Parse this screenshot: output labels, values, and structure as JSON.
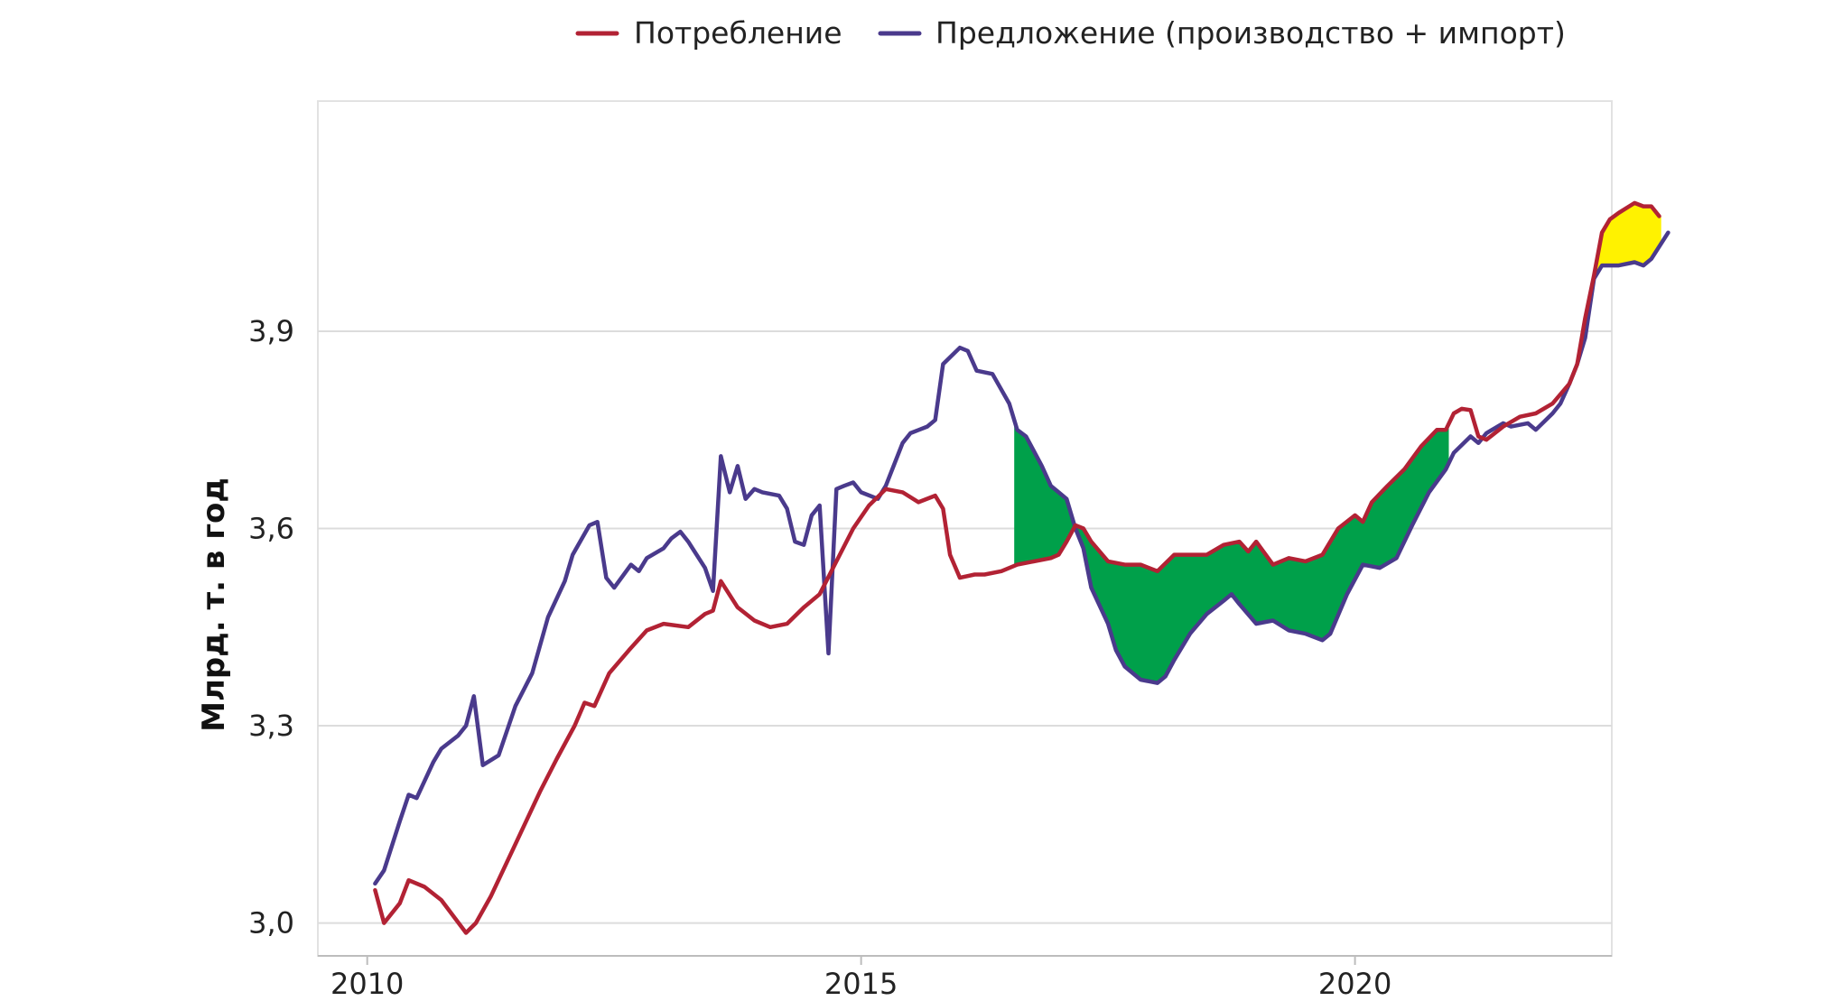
{
  "chart_data": {
    "type": "line",
    "title": "",
    "xlabel": "",
    "ylabel": "Млрд. т. в год",
    "xlim": [
      2009.5,
      2022.6
    ],
    "ylim": [
      2.95,
      4.25
    ],
    "x_ticks": [
      2010,
      2015,
      2020
    ],
    "x_tick_labels": [
      "2010",
      "2015",
      "2020"
    ],
    "y_ticks": [
      3.0,
      3.3,
      3.6,
      3.9
    ],
    "y_tick_labels": [
      "3,0",
      "3,3",
      "3,6",
      "3,9"
    ],
    "grid": "horizontal",
    "legend_position": "top",
    "series": [
      {
        "name": "Потребление",
        "color": "#b22234",
        "points": [
          [
            2010.08,
            3.05
          ],
          [
            2010.17,
            3.0
          ],
          [
            2010.33,
            3.03
          ],
          [
            2010.42,
            3.065
          ],
          [
            2010.58,
            3.055
          ],
          [
            2010.75,
            3.035
          ],
          [
            2010.9,
            3.005
          ],
          [
            2011.0,
            2.985
          ],
          [
            2011.1,
            3.0
          ],
          [
            2011.25,
            3.04
          ],
          [
            2011.5,
            3.12
          ],
          [
            2011.75,
            3.2
          ],
          [
            2011.92,
            3.25
          ],
          [
            2012.1,
            3.3
          ],
          [
            2012.2,
            3.335
          ],
          [
            2012.3,
            3.33
          ],
          [
            2012.45,
            3.38
          ],
          [
            2012.65,
            3.415
          ],
          [
            2012.83,
            3.445
          ],
          [
            2013.0,
            3.455
          ],
          [
            2013.25,
            3.45
          ],
          [
            2013.42,
            3.47
          ],
          [
            2013.5,
            3.475
          ],
          [
            2013.58,
            3.52
          ],
          [
            2013.75,
            3.48
          ],
          [
            2013.92,
            3.46
          ],
          [
            2014.08,
            3.45
          ],
          [
            2014.25,
            3.455
          ],
          [
            2014.42,
            3.48
          ],
          [
            2014.58,
            3.5
          ],
          [
            2014.75,
            3.55
          ],
          [
            2014.92,
            3.6
          ],
          [
            2015.08,
            3.635
          ],
          [
            2015.25,
            3.66
          ],
          [
            2015.42,
            3.655
          ],
          [
            2015.58,
            3.64
          ],
          [
            2015.75,
            3.65
          ],
          [
            2015.83,
            3.63
          ],
          [
            2015.9,
            3.56
          ],
          [
            2016.0,
            3.525
          ],
          [
            2016.15,
            3.53
          ],
          [
            2016.25,
            3.53
          ],
          [
            2016.42,
            3.535
          ],
          [
            2016.58,
            3.545
          ],
          [
            2016.75,
            3.55
          ],
          [
            2016.92,
            3.555
          ],
          [
            2017.0,
            3.56
          ],
          [
            2017.08,
            3.58
          ],
          [
            2017.17,
            3.605
          ],
          [
            2017.25,
            3.6
          ],
          [
            2017.33,
            3.58
          ],
          [
            2017.5,
            3.55
          ],
          [
            2017.67,
            3.545
          ],
          [
            2017.83,
            3.545
          ],
          [
            2018.0,
            3.535
          ],
          [
            2018.17,
            3.56
          ],
          [
            2018.33,
            3.56
          ],
          [
            2018.5,
            3.56
          ],
          [
            2018.67,
            3.575
          ],
          [
            2018.83,
            3.58
          ],
          [
            2018.92,
            3.565
          ],
          [
            2019.0,
            3.58
          ],
          [
            2019.17,
            3.545
          ],
          [
            2019.33,
            3.555
          ],
          [
            2019.5,
            3.55
          ],
          [
            2019.67,
            3.56
          ],
          [
            2019.83,
            3.6
          ],
          [
            2020.0,
            3.62
          ],
          [
            2020.08,
            3.61
          ],
          [
            2020.17,
            3.64
          ],
          [
            2020.33,
            3.665
          ],
          [
            2020.5,
            3.69
          ],
          [
            2020.67,
            3.725
          ],
          [
            2020.83,
            3.75
          ],
          [
            2020.92,
            3.75
          ],
          [
            2021.0,
            3.775
          ],
          [
            2021.08,
            3.782
          ],
          [
            2021.17,
            3.78
          ],
          [
            2021.25,
            3.74
          ],
          [
            2021.33,
            3.735
          ],
          [
            2021.5,
            3.755
          ],
          [
            2021.67,
            3.77
          ],
          [
            2021.83,
            3.775
          ],
          [
            2022.0,
            3.79
          ],
          [
            2022.17,
            3.82
          ],
          [
            2022.25,
            3.85
          ],
          [
            2022.33,
            3.92
          ],
          [
            2022.42,
            3.985
          ],
          [
            2022.5,
            4.05
          ],
          [
            2022.58,
            4.07
          ],
          [
            2022.67,
            4.08
          ],
          [
            2022.83,
            4.095
          ],
          [
            2022.92,
            4.09
          ],
          [
            2023.0,
            4.09
          ],
          [
            2023.08,
            4.075
          ]
        ]
      },
      {
        "name": "Предложение (производство + импорт)",
        "color": "#4a3a8c",
        "points": [
          [
            2010.08,
            3.06
          ],
          [
            2010.17,
            3.08
          ],
          [
            2010.33,
            3.155
          ],
          [
            2010.42,
            3.195
          ],
          [
            2010.5,
            3.19
          ],
          [
            2010.67,
            3.245
          ],
          [
            2010.75,
            3.265
          ],
          [
            2010.92,
            3.285
          ],
          [
            2011.0,
            3.3
          ],
          [
            2011.08,
            3.345
          ],
          [
            2011.17,
            3.24
          ],
          [
            2011.33,
            3.255
          ],
          [
            2011.5,
            3.33
          ],
          [
            2011.67,
            3.38
          ],
          [
            2011.83,
            3.465
          ],
          [
            2012.0,
            3.52
          ],
          [
            2012.08,
            3.56
          ],
          [
            2012.25,
            3.605
          ],
          [
            2012.33,
            3.61
          ],
          [
            2012.42,
            3.525
          ],
          [
            2012.5,
            3.51
          ],
          [
            2012.67,
            3.545
          ],
          [
            2012.75,
            3.535
          ],
          [
            2012.83,
            3.555
          ],
          [
            2013.0,
            3.57
          ],
          [
            2013.08,
            3.585
          ],
          [
            2013.17,
            3.595
          ],
          [
            2013.25,
            3.58
          ],
          [
            2013.42,
            3.54
          ],
          [
            2013.5,
            3.505
          ],
          [
            2013.58,
            3.71
          ],
          [
            2013.67,
            3.655
          ],
          [
            2013.75,
            3.695
          ],
          [
            2013.83,
            3.645
          ],
          [
            2013.92,
            3.66
          ],
          [
            2014.0,
            3.655
          ],
          [
            2014.17,
            3.65
          ],
          [
            2014.25,
            3.63
          ],
          [
            2014.33,
            3.58
          ],
          [
            2014.42,
            3.575
          ],
          [
            2014.5,
            3.62
          ],
          [
            2014.58,
            3.635
          ],
          [
            2014.67,
            3.41
          ],
          [
            2014.75,
            3.66
          ],
          [
            2014.83,
            3.665
          ],
          [
            2014.92,
            3.67
          ],
          [
            2015.0,
            3.655
          ],
          [
            2015.17,
            3.645
          ],
          [
            2015.25,
            3.665
          ],
          [
            2015.42,
            3.73
          ],
          [
            2015.5,
            3.745
          ],
          [
            2015.67,
            3.755
          ],
          [
            2015.75,
            3.765
          ],
          [
            2015.83,
            3.85
          ],
          [
            2016.0,
            3.875
          ],
          [
            2016.08,
            3.87
          ],
          [
            2016.17,
            3.84
          ],
          [
            2016.33,
            3.835
          ],
          [
            2016.5,
            3.79
          ],
          [
            2016.58,
            3.75
          ],
          [
            2016.67,
            3.74
          ],
          [
            2016.83,
            3.695
          ],
          [
            2016.92,
            3.665
          ],
          [
            2017.0,
            3.655
          ],
          [
            2017.08,
            3.645
          ],
          [
            2017.17,
            3.6
          ],
          [
            2017.25,
            3.57
          ],
          [
            2017.33,
            3.51
          ],
          [
            2017.5,
            3.455
          ],
          [
            2017.58,
            3.415
          ],
          [
            2017.67,
            3.39
          ],
          [
            2017.83,
            3.37
          ],
          [
            2018.0,
            3.365
          ],
          [
            2018.08,
            3.375
          ],
          [
            2018.17,
            3.4
          ],
          [
            2018.33,
            3.44
          ],
          [
            2018.5,
            3.47
          ],
          [
            2018.67,
            3.49
          ],
          [
            2018.75,
            3.5
          ],
          [
            2018.83,
            3.485
          ],
          [
            2019.0,
            3.455
          ],
          [
            2019.17,
            3.46
          ],
          [
            2019.33,
            3.445
          ],
          [
            2019.5,
            3.44
          ],
          [
            2019.67,
            3.43
          ],
          [
            2019.75,
            3.44
          ],
          [
            2019.92,
            3.5
          ],
          [
            2020.08,
            3.545
          ],
          [
            2020.25,
            3.54
          ],
          [
            2020.42,
            3.555
          ],
          [
            2020.58,
            3.605
          ],
          [
            2020.75,
            3.655
          ],
          [
            2020.92,
            3.69
          ],
          [
            2021.0,
            3.715
          ],
          [
            2021.17,
            3.74
          ],
          [
            2021.25,
            3.73
          ],
          [
            2021.33,
            3.745
          ],
          [
            2021.5,
            3.76
          ],
          [
            2021.58,
            3.755
          ],
          [
            2021.75,
            3.76
          ],
          [
            2021.83,
            3.75
          ],
          [
            2022.0,
            3.775
          ],
          [
            2022.08,
            3.79
          ],
          [
            2022.17,
            3.82
          ],
          [
            2022.25,
            3.85
          ],
          [
            2022.33,
            3.89
          ],
          [
            2022.42,
            3.98
          ],
          [
            2022.5,
            4.0
          ],
          [
            2022.67,
            4.0
          ],
          [
            2022.83,
            4.005
          ],
          [
            2022.92,
            4.0
          ],
          [
            2023.0,
            4.01
          ],
          [
            2023.17,
            4.05
          ]
        ]
      }
    ],
    "shaded_regions": [
      {
        "color": "#00a04a",
        "between": [
          "Потребление",
          "Предложение (производство + импорт)"
        ],
        "x_range": [
          2016.55,
          2020.95
        ]
      },
      {
        "color": "#fff200",
        "between": [
          "Потребление",
          "Предложение (производство + импорт)"
        ],
        "x_range": [
          2022.4,
          2023.1
        ]
      }
    ]
  }
}
